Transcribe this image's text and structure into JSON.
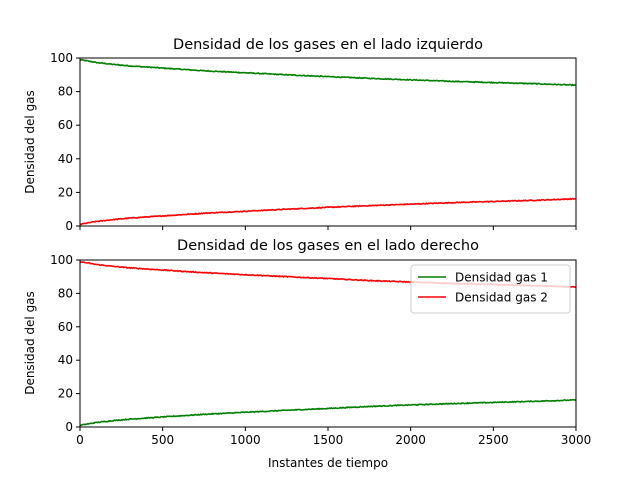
{
  "chart_data": [
    {
      "type": "line",
      "title": "Densidad de los gases en el lado izquierdo",
      "xlabel": "",
      "ylabel": "Densidad del gas",
      "xlim": [
        0,
        3000
      ],
      "ylim": [
        0,
        100
      ],
      "xticks": [
        0,
        500,
        1000,
        1500,
        2000,
        2500,
        3000
      ],
      "xtick_labels_visible": false,
      "yticks": [
        0,
        20,
        40,
        60,
        80,
        100
      ],
      "grid": false,
      "legend": null,
      "series": [
        {
          "color": "#008000",
          "x": [
            0,
            100,
            200,
            300,
            500,
            750,
            1000,
            1250,
            1500,
            1750,
            2000,
            2250,
            2500,
            2750,
            3000
          ],
          "y": [
            99,
            97.3,
            96.2,
            95.3,
            94,
            92.4,
            91.2,
            90,
            88.9,
            87.9,
            87,
            86.1,
            85.4,
            84.7,
            83.8
          ]
        },
        {
          "color": "#ff0000",
          "x": [
            0,
            100,
            200,
            300,
            500,
            750,
            1000,
            1250,
            1500,
            1750,
            2000,
            2250,
            2500,
            2750,
            3000
          ],
          "y": [
            1,
            2.7,
            3.8,
            4.7,
            6,
            7.6,
            8.8,
            10,
            11.1,
            12.1,
            13,
            13.9,
            14.6,
            15.3,
            16.2
          ]
        }
      ]
    },
    {
      "type": "line",
      "title": "Densidad de los gases en el lado derecho",
      "xlabel": "Instantes de tiempo",
      "ylabel": "Densidad del gas",
      "xlim": [
        0,
        3000
      ],
      "ylim": [
        0,
        100
      ],
      "xticks": [
        0,
        500,
        1000,
        1500,
        2000,
        2500,
        3000
      ],
      "xtick_labels_visible": true,
      "yticks": [
        0,
        20,
        40,
        60,
        80,
        100
      ],
      "grid": false,
      "legend": "top-right",
      "series": [
        {
          "name": "Densidad gas 1",
          "color": "#008000",
          "x": [
            0,
            100,
            200,
            300,
            500,
            750,
            1000,
            1250,
            1500,
            1750,
            2000,
            2250,
            2500,
            2750,
            3000
          ],
          "y": [
            1,
            2.7,
            3.8,
            4.7,
            6,
            7.6,
            8.8,
            10,
            11.1,
            12.3,
            13.2,
            14,
            14.7,
            15.4,
            16.2
          ]
        },
        {
          "name": "Densidad gas 2",
          "color": "#ff0000",
          "x": [
            0,
            100,
            200,
            300,
            500,
            750,
            1000,
            1250,
            1500,
            1750,
            2000,
            2250,
            2500,
            2750,
            3000
          ],
          "y": [
            99,
            97.3,
            96.2,
            95.3,
            94,
            92.4,
            91.2,
            90,
            88.9,
            87.7,
            86.8,
            86,
            85.3,
            84.6,
            83.8
          ]
        }
      ]
    }
  ]
}
